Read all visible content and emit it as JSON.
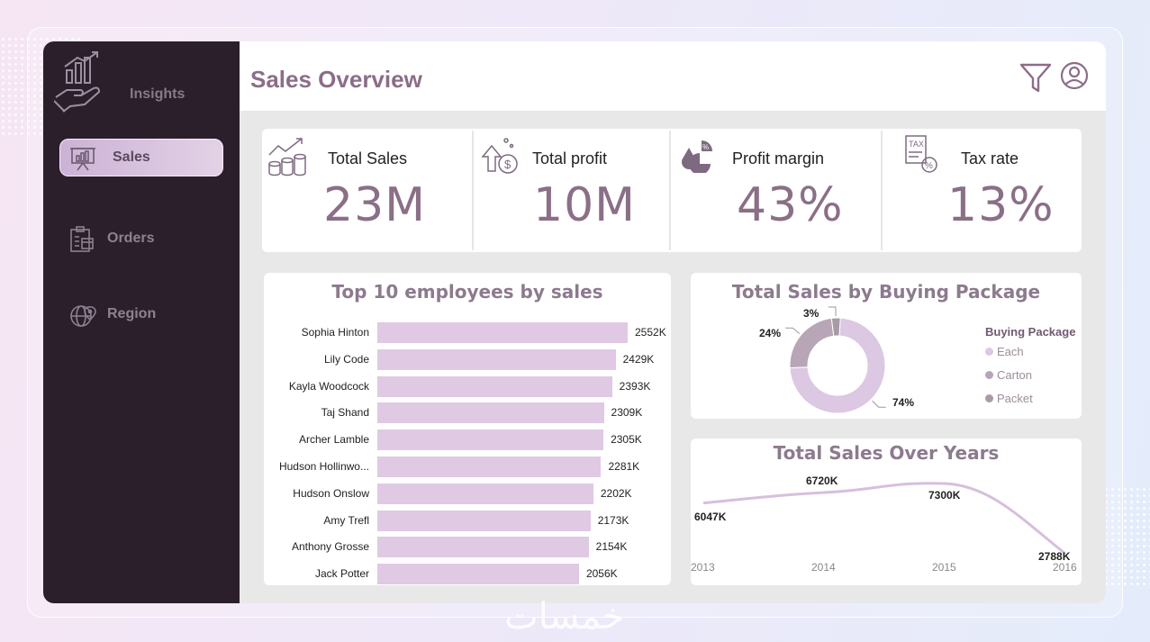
{
  "sidebar": {
    "brand_label": "Insights",
    "items": [
      {
        "label": "Sales",
        "icon": "presentation-chart-icon",
        "active": true
      },
      {
        "label": "Orders",
        "icon": "clipboard-box-icon",
        "active": false
      },
      {
        "label": "Region",
        "icon": "globe-pin-icon",
        "active": false
      }
    ]
  },
  "header": {
    "title": "Sales Overview",
    "icons": [
      "filter-icon",
      "user-icon"
    ]
  },
  "kpis": [
    {
      "label": "Total Sales",
      "value": "23M",
      "icon": "coins-growth-icon"
    },
    {
      "label": "Total profit",
      "value": "10M",
      "icon": "money-bag-up-icon"
    },
    {
      "label": "Profit margin",
      "value": "43%",
      "icon": "pie-percent-icon"
    },
    {
      "label": "Tax rate",
      "value": "13%",
      "icon": "tax-document-icon"
    }
  ],
  "employees_card": {
    "title": "Top 10 employees by sales"
  },
  "package_card": {
    "title": "Total Sales by Buying Package",
    "legend_title": "Buying Package"
  },
  "years_card": {
    "title": "Total Sales Over Years"
  },
  "colors": {
    "accent": "#8c6d88",
    "sidebar": "#2a1f2b",
    "bar": "#dfc9e3",
    "each": "#dcc8e2",
    "carton": "#b7a6b5",
    "packet": "#a99aa8",
    "line": "#d6bfdc"
  },
  "chart_data": [
    {
      "type": "bar",
      "title": "Top 10 employees by sales",
      "categories": [
        "Sophia Hinton",
        "Lily Code",
        "Kayla Woodcock",
        "Taj Shand",
        "Archer Lamble",
        "Hudson Hollinwo...",
        "Hudson Onslow",
        "Amy Trefl",
        "Anthony Grosse",
        "Jack Potter"
      ],
      "values": [
        2552,
        2429,
        2393,
        2309,
        2305,
        2281,
        2202,
        2173,
        2154,
        2056
      ],
      "labels": [
        "2552K",
        "2429K",
        "2393K",
        "2309K",
        "2305K",
        "2281K",
        "2202K",
        "2173K",
        "2154K",
        "2056K"
      ],
      "orientation": "horizontal",
      "xlim": [
        0,
        2552
      ]
    },
    {
      "type": "pie",
      "title": "Total Sales by Buying Package",
      "style": "donut",
      "categories": [
        "Each",
        "Carton",
        "Packet"
      ],
      "values": [
        74,
        24,
        3
      ],
      "labels": [
        "74%",
        "24%",
        "3%"
      ],
      "legend": "right"
    },
    {
      "type": "line",
      "title": "Total Sales Over Years",
      "x": [
        "2013",
        "2014",
        "2015",
        "2016"
      ],
      "values": [
        6047,
        6720,
        7300,
        2788
      ],
      "labels": [
        "6047K",
        "6720K",
        "7300K",
        "2788K"
      ]
    }
  ],
  "watermark": "خمسات"
}
